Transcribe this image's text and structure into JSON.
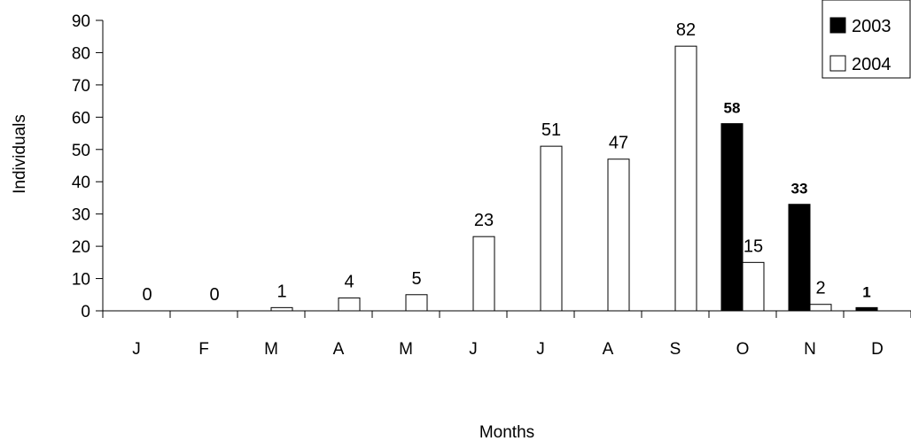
{
  "chart_data": {
    "type": "bar",
    "categories": [
      "J",
      "F",
      "M",
      "A",
      "M",
      "J",
      "J",
      "A",
      "S",
      "O",
      "N",
      "D"
    ],
    "series": [
      {
        "name": "2003",
        "color": "#000000",
        "values": [
          null,
          null,
          null,
          null,
          null,
          null,
          null,
          null,
          null,
          58,
          33,
          1
        ],
        "labels": [
          "",
          "",
          "",
          "",
          "",
          "",
          "",
          "",
          "",
          "58",
          "33",
          "1"
        ]
      },
      {
        "name": "2004",
        "color": "#ffffff",
        "values": [
          0,
          0,
          1,
          4,
          5,
          23,
          51,
          47,
          82,
          15,
          2,
          null
        ],
        "labels": [
          "0",
          "0",
          "1",
          "4",
          "5",
          "23",
          "51",
          "47",
          "82",
          "15",
          "2",
          ""
        ]
      }
    ],
    "xlabel": "Months",
    "ylabel": "Individuals",
    "ylim": [
      0,
      90
    ],
    "yticks": [
      0,
      10,
      20,
      30,
      40,
      50,
      60,
      70,
      80,
      90
    ],
    "legend": "top-right",
    "grid": false
  }
}
